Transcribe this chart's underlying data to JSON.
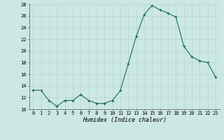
{
  "x": [
    0,
    1,
    2,
    3,
    4,
    5,
    6,
    7,
    8,
    9,
    10,
    11,
    12,
    13,
    14,
    15,
    16,
    17,
    18,
    19,
    20,
    21,
    22,
    23
  ],
  "y": [
    13.3,
    13.2,
    11.5,
    10.5,
    11.5,
    11.5,
    12.5,
    11.5,
    11.0,
    11.0,
    11.5,
    13.2,
    17.8,
    22.5,
    26.2,
    27.8,
    27.0,
    26.5,
    25.8,
    20.8,
    19.0,
    18.3,
    18.0,
    15.5
  ],
  "xlabel": "Humidex (Indice chaleur)",
  "ylim": [
    10,
    28
  ],
  "xlim": [
    -0.5,
    23.5
  ],
  "yticks": [
    10,
    12,
    14,
    16,
    18,
    20,
    22,
    24,
    26,
    28
  ],
  "xticks": [
    0,
    1,
    2,
    3,
    4,
    5,
    6,
    7,
    8,
    9,
    10,
    11,
    12,
    13,
    14,
    15,
    16,
    17,
    18,
    19,
    20,
    21,
    22,
    23
  ],
  "xtick_labels": [
    "0",
    "1",
    "2",
    "3",
    "4",
    "5",
    "6",
    "7",
    "8",
    "9",
    "10",
    "11",
    "12",
    "13",
    "14",
    "15",
    "16",
    "17",
    "18",
    "19",
    "20",
    "21",
    "22",
    "23"
  ],
  "line_color": "#1a6b5a",
  "marker": "+",
  "bg_color": "#cce8e4",
  "grid_color_major": "#b8d4d0",
  "grid_color_minor": "#c8e0dc"
}
